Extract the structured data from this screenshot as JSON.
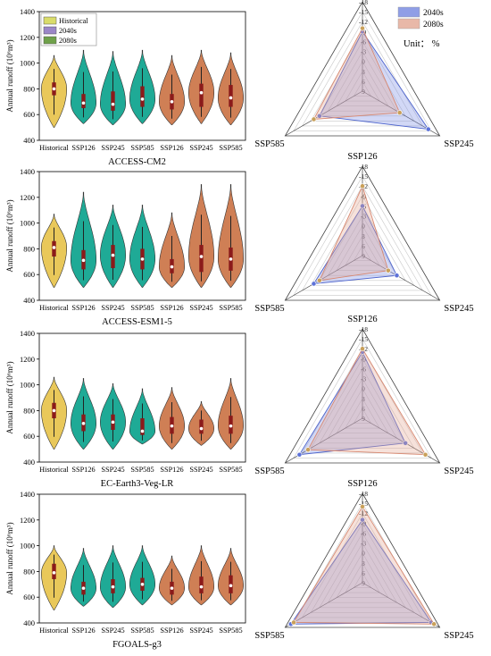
{
  "figure": {
    "legend_violin": [
      {
        "label": "Historical",
        "color": "#d9dc6a"
      },
      {
        "label": "2040s",
        "color": "#9b86c8"
      },
      {
        "label": "2080s",
        "color": "#6fa14a"
      }
    ],
    "legend_radar": [
      {
        "label": "2040s",
        "color": "#8f9ee6"
      },
      {
        "label": "2080s",
        "color": "#e8b8a8"
      }
    ],
    "unit_label": "Unit： %",
    "colors": {
      "historical": "#e9c85a",
      "future_2040s": "#1faa96",
      "future_2080s": "#cf7f55",
      "radar_2040s_fill": "#7d8fe6",
      "radar_2040s_line": "#4b62cc",
      "radar_2080s_fill": "#e6a896",
      "radar_2080s_line": "#d88870"
    }
  },
  "chart_data": [
    {
      "type": "violin",
      "model": "ACCESS-CM2",
      "ylabel": "Annual runoff (10⁶m³)",
      "ylim": [
        400,
        1400
      ],
      "yticks": [
        400,
        600,
        800,
        1000,
        1200,
        1400
      ],
      "categories": [
        "Historical",
        "SSP126",
        "SSP245",
        "SSP585",
        "SSP126",
        "SSP245",
        "SSP585"
      ],
      "periods": [
        "historical",
        "2040s",
        "2040s",
        "2040s",
        "2080s",
        "2080s",
        "2080s"
      ],
      "distributions": [
        {
          "min": 500,
          "q1": 750,
          "median": 800,
          "q3": 850,
          "max": 1060
        },
        {
          "min": 530,
          "q1": 650,
          "median": 690,
          "q3": 760,
          "max": 1100
        },
        {
          "min": 520,
          "q1": 630,
          "median": 680,
          "q3": 780,
          "max": 1090
        },
        {
          "min": 530,
          "q1": 660,
          "median": 720,
          "q3": 820,
          "max": 1100
        },
        {
          "min": 520,
          "q1": 640,
          "median": 700,
          "q3": 760,
          "max": 1060
        },
        {
          "min": 530,
          "q1": 660,
          "median": 770,
          "q3": 840,
          "max": 1100
        },
        {
          "min": 520,
          "q1": 660,
          "median": 730,
          "q3": 830,
          "max": 1080
        }
      ]
    },
    {
      "type": "violin",
      "model": "ACCESS-ESM1-5",
      "ylabel": "Annual runoff (10⁶m³)",
      "ylim": [
        400,
        1400
      ],
      "yticks": [
        400,
        600,
        800,
        1000,
        1200,
        1400
      ],
      "categories": [
        "Historical",
        "SSP126",
        "SSP245",
        "SSP585",
        "SSP126",
        "SSP245",
        "SSP585"
      ],
      "periods": [
        "historical",
        "2040s",
        "2040s",
        "2040s",
        "2080s",
        "2080s",
        "2080s"
      ],
      "distributions": [
        {
          "min": 500,
          "q1": 740,
          "median": 810,
          "q3": 860,
          "max": 1070
        },
        {
          "min": 500,
          "q1": 640,
          "median": 710,
          "q3": 790,
          "max": 1240
        },
        {
          "min": 500,
          "q1": 650,
          "median": 750,
          "q3": 830,
          "max": 1140
        },
        {
          "min": 500,
          "q1": 640,
          "median": 720,
          "q3": 800,
          "max": 1140
        },
        {
          "min": 500,
          "q1": 610,
          "median": 660,
          "q3": 720,
          "max": 1080
        },
        {
          "min": 500,
          "q1": 620,
          "median": 740,
          "q3": 830,
          "max": 1300
        },
        {
          "min": 500,
          "q1": 630,
          "median": 720,
          "q3": 810,
          "max": 1300
        }
      ]
    },
    {
      "type": "violin",
      "model": "EC-Earth3-Veg-LR",
      "ylabel": "Annual runoff (10⁶m³)",
      "ylim": [
        400,
        1400
      ],
      "yticks": [
        400,
        600,
        800,
        1000,
        1200,
        1400
      ],
      "categories": [
        "Historical",
        "SSP126",
        "SSP245",
        "SSP585",
        "SSP126",
        "SSP245",
        "SSP585"
      ],
      "periods": [
        "historical",
        "2040s",
        "2040s",
        "2040s",
        "2080s",
        "2080s",
        "2080s"
      ],
      "distributions": [
        {
          "min": 500,
          "q1": 740,
          "median": 800,
          "q3": 860,
          "max": 1060
        },
        {
          "min": 500,
          "q1": 640,
          "median": 700,
          "q3": 770,
          "max": 1050
        },
        {
          "min": 500,
          "q1": 650,
          "median": 710,
          "q3": 770,
          "max": 1010
        },
        {
          "min": 540,
          "q1": 610,
          "median": 640,
          "q3": 740,
          "max": 970
        },
        {
          "min": 500,
          "q1": 620,
          "median": 680,
          "q3": 750,
          "max": 980
        },
        {
          "min": 530,
          "q1": 620,
          "median": 660,
          "q3": 730,
          "max": 870
        },
        {
          "min": 500,
          "q1": 620,
          "median": 680,
          "q3": 760,
          "max": 1050
        }
      ]
    },
    {
      "type": "violin",
      "model": "FGOALS-g3",
      "ylabel": "Annual runoff (10⁶m³)",
      "ylim": [
        400,
        1400
      ],
      "yticks": [
        400,
        600,
        800,
        1000,
        1200,
        1400
      ],
      "categories": [
        "Historical",
        "SSP126",
        "SSP245",
        "SSP585",
        "SSP126",
        "SSP245",
        "SSP585"
      ],
      "periods": [
        "historical",
        "2040s",
        "2040s",
        "2040s",
        "2080s",
        "2080s",
        "2080s"
      ],
      "distributions": [
        {
          "min": 500,
          "q1": 740,
          "median": 790,
          "q3": 860,
          "max": 1000
        },
        {
          "min": 530,
          "q1": 620,
          "median": 670,
          "q3": 720,
          "max": 980
        },
        {
          "min": 520,
          "q1": 630,
          "median": 680,
          "q3": 740,
          "max": 1000
        },
        {
          "min": 540,
          "q1": 650,
          "median": 700,
          "q3": 750,
          "max": 1000
        },
        {
          "min": 540,
          "q1": 620,
          "median": 670,
          "q3": 720,
          "max": 920
        },
        {
          "min": 540,
          "q1": 630,
          "median": 680,
          "q3": 760,
          "max": 1000
        },
        {
          "min": 540,
          "q1": 630,
          "median": 690,
          "q3": 770,
          "max": 980
        }
      ]
    },
    {
      "type": "radar",
      "model": "ACCESS-CM2",
      "axes": [
        "SSP126",
        "SSP245",
        "SSP585"
      ],
      "ticks": [
        -18,
        -15,
        -12,
        -9,
        -6,
        -3,
        0,
        3,
        6,
        9
      ],
      "rlim": [
        -18,
        9
      ],
      "series": [
        {
          "name": "2040s",
          "values": [
            -9,
            -14,
            -6
          ]
        },
        {
          "name": "2080s",
          "values": [
            -10,
            -4,
            -8
          ]
        }
      ]
    },
    {
      "type": "radar",
      "model": "ACCESS-ESM1-5",
      "axes": [
        "SSP126",
        "SSP245",
        "SSP585"
      ],
      "ticks": [
        -18,
        -15,
        -12,
        -9,
        -6,
        -3,
        0,
        3,
        6,
        9
      ],
      "rlim": [
        -18,
        9
      ],
      "series": [
        {
          "name": "2040s",
          "values": [
            -6,
            -3,
            -8
          ]
        },
        {
          "name": "2080s",
          "values": [
            -12,
            0,
            -6
          ]
        }
      ]
    },
    {
      "type": "radar",
      "model": "EC-Earth3-Veg-LR",
      "axes": [
        "SSP126",
        "SSP245",
        "SSP585"
      ],
      "ticks": [
        -18,
        -15,
        -12,
        -9,
        -6,
        -3,
        0,
        3,
        6,
        9
      ],
      "rlim": [
        -18,
        9
      ],
      "series": [
        {
          "name": "2040s",
          "values": [
            -11,
            -6,
            -13
          ]
        },
        {
          "name": "2080s",
          "values": [
            -12,
            -13,
            -10
          ]
        }
      ]
    },
    {
      "type": "radar",
      "model": "FGOALS-g3",
      "axes": [
        "SSP126",
        "SSP245",
        "SSP585"
      ],
      "ticks": [
        -18,
        -15,
        -12,
        -9,
        -6,
        -3,
        0,
        3,
        6,
        9
      ],
      "rlim": [
        -18,
        9
      ],
      "series": [
        {
          "name": "2040s",
          "values": [
            -10,
            -15,
            -16
          ]
        },
        {
          "name": "2080s",
          "values": [
            -14,
            -16,
            -15
          ]
        }
      ]
    }
  ]
}
